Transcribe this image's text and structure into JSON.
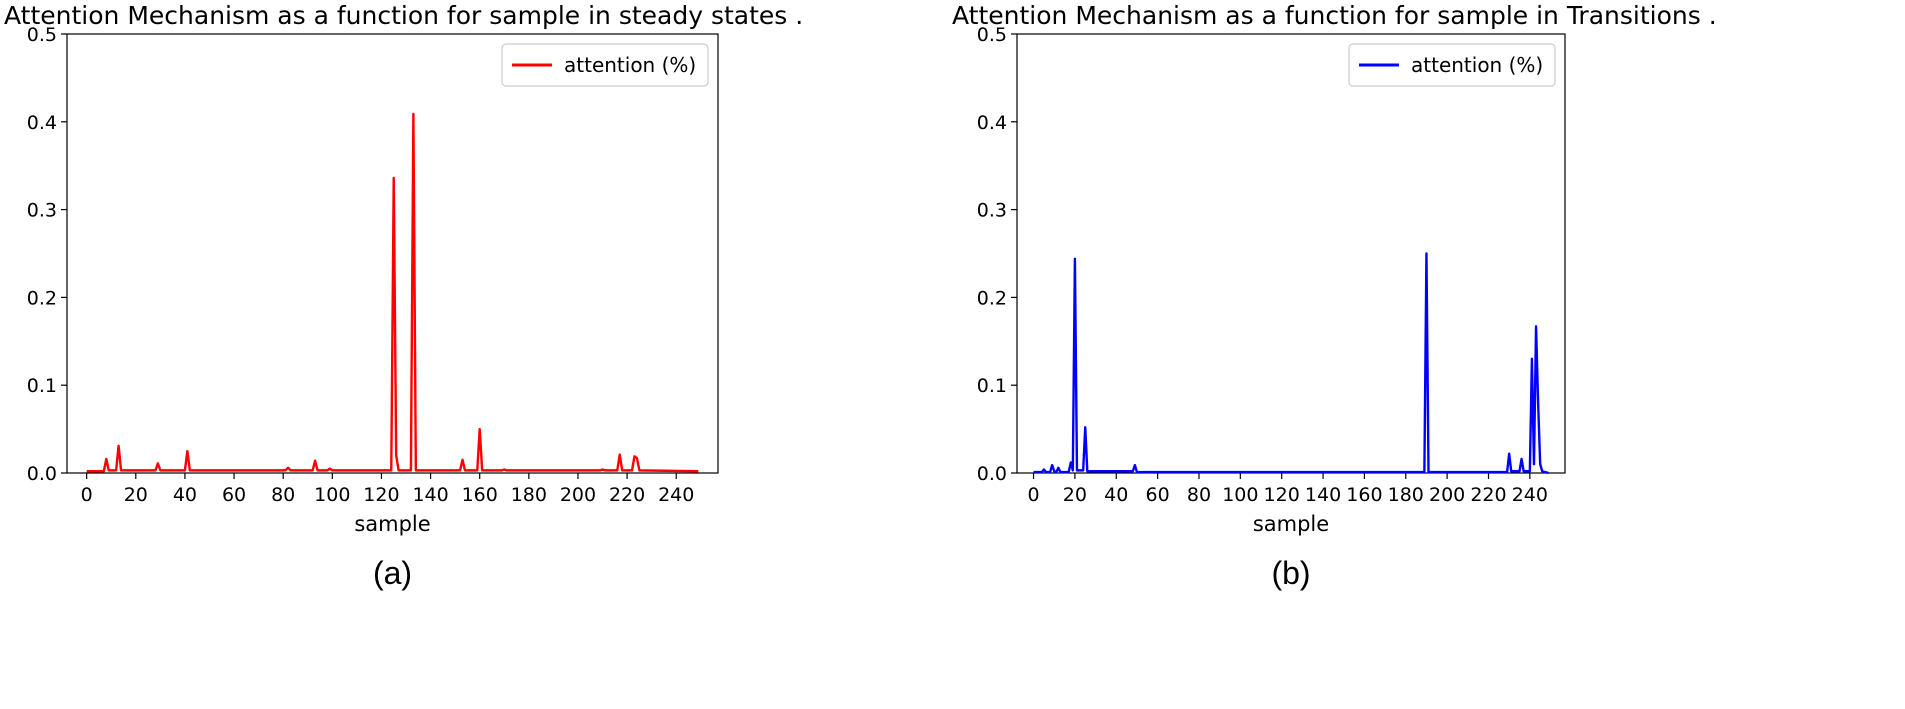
{
  "chart_data": [
    {
      "type": "line",
      "panel_label": "(a)",
      "title": "Attention Mechanism as a function for sample in steady states .",
      "xlabel": "sample",
      "ylabel": "",
      "xlim": [
        -8,
        257
      ],
      "ylim": [
        0,
        0.5
      ],
      "xticks": [
        0,
        20,
        40,
        60,
        80,
        100,
        120,
        140,
        160,
        180,
        200,
        220,
        240
      ],
      "yticks": [
        0.0,
        0.1,
        0.2,
        0.3,
        0.4,
        0.5
      ],
      "legend_position": "top-right",
      "color": "#ff0000",
      "series": [
        {
          "name": "attention (%)",
          "points": [
            [
              0,
              0.002
            ],
            [
              7,
              0.002
            ],
            [
              8,
              0.016
            ],
            [
              9,
              0.003
            ],
            [
              12,
              0.003
            ],
            [
              13,
              0.031
            ],
            [
              14,
              0.003
            ],
            [
              28,
              0.003
            ],
            [
              29,
              0.011
            ],
            [
              30,
              0.003
            ],
            [
              40,
              0.003
            ],
            [
              41,
              0.025
            ],
            [
              42,
              0.003
            ],
            [
              81,
              0.003
            ],
            [
              82,
              0.006
            ],
            [
              83,
              0.003
            ],
            [
              92,
              0.003
            ],
            [
              93,
              0.014
            ],
            [
              94,
              0.003
            ],
            [
              98,
              0.003
            ],
            [
              99,
              0.005
            ],
            [
              100,
              0.003
            ],
            [
              124,
              0.003
            ],
            [
              125,
              0.336
            ],
            [
              126,
              0.02
            ],
            [
              127,
              0.003
            ],
            [
              132,
              0.003
            ],
            [
              133,
              0.409
            ],
            [
              134,
              0.003
            ],
            [
              152,
              0.003
            ],
            [
              153,
              0.015
            ],
            [
              154,
              0.003
            ],
            [
              159,
              0.003
            ],
            [
              160,
              0.05
            ],
            [
              161,
              0.003
            ],
            [
              169,
              0.003
            ],
            [
              170,
              0.004
            ],
            [
              171,
              0.003
            ],
            [
              209,
              0.003
            ],
            [
              210,
              0.004
            ],
            [
              211,
              0.003
            ],
            [
              216,
              0.003
            ],
            [
              217,
              0.021
            ],
            [
              218,
              0.003
            ],
            [
              222,
              0.003
            ],
            [
              223,
              0.019
            ],
            [
              224,
              0.017
            ],
            [
              225,
              0.003
            ],
            [
              249,
              0.002
            ]
          ]
        }
      ]
    },
    {
      "type": "line",
      "panel_label": "(b)",
      "title": "Attention Mechanism as a function for sample in Transitions .",
      "xlabel": "sample",
      "ylabel": "",
      "xlim": [
        -8,
        257
      ],
      "ylim": [
        0,
        0.5
      ],
      "xticks": [
        0,
        20,
        40,
        60,
        80,
        100,
        120,
        140,
        160,
        180,
        200,
        220,
        240
      ],
      "yticks": [
        0.0,
        0.1,
        0.2,
        0.3,
        0.4,
        0.5
      ],
      "legend_position": "top-right",
      "color": "#0000ff",
      "series": [
        {
          "name": "attention (%)",
          "points": [
            [
              0,
              0.001
            ],
            [
              4,
              0.001
            ],
            [
              5,
              0.004
            ],
            [
              6,
              0.001
            ],
            [
              8,
              0.001
            ],
            [
              9,
              0.009
            ],
            [
              10,
              0.002
            ],
            [
              11,
              0.001
            ],
            [
              12,
              0.006
            ],
            [
              13,
              0.001
            ],
            [
              17,
              0.001
            ],
            [
              18,
              0.012
            ],
            [
              19,
              0.003
            ],
            [
              20,
              0.244
            ],
            [
              21,
              0.003
            ],
            [
              24,
              0.003
            ],
            [
              25,
              0.052
            ],
            [
              26,
              0.002
            ],
            [
              48,
              0.002
            ],
            [
              49,
              0.009
            ],
            [
              50,
              0.001
            ],
            [
              189,
              0.001
            ],
            [
              190,
              0.25
            ],
            [
              191,
              0.001
            ],
            [
              229,
              0.001
            ],
            [
              230,
              0.022
            ],
            [
              231,
              0.002
            ],
            [
              235,
              0.002
            ],
            [
              236,
              0.016
            ],
            [
              237,
              0.002
            ],
            [
              240,
              0.002
            ],
            [
              241,
              0.13
            ],
            [
              242,
              0.01
            ],
            [
              243,
              0.167
            ],
            [
              244,
              0.08
            ],
            [
              245,
              0.01
            ],
            [
              246,
              0.002
            ],
            [
              249,
              0.0
            ]
          ]
        }
      ]
    }
  ]
}
